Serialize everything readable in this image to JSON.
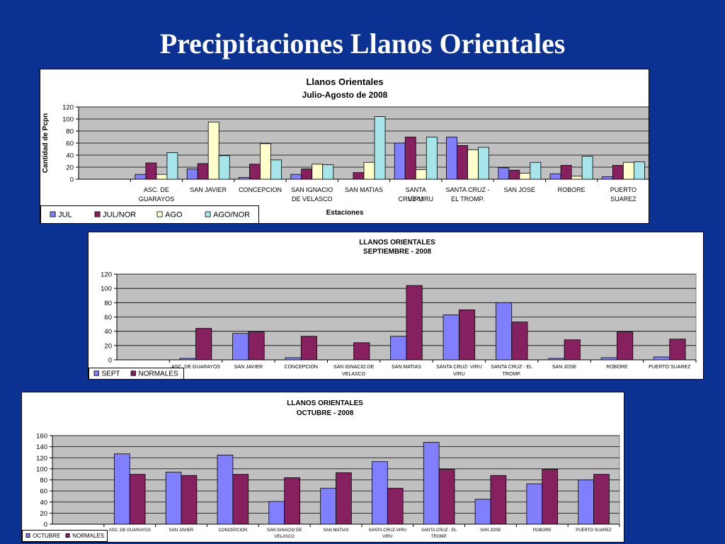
{
  "slide": {
    "title": "Precipitaciones Llanos Orientales"
  },
  "colors": {
    "background": "#0b3193",
    "plot_area": "#c0c0c0",
    "jul": "#8080ff",
    "jul_nor": "#86205e",
    "ago": "#ffffcc",
    "ago_nor": "#a6e6ea"
  },
  "chart_data": [
    {
      "type": "bar",
      "title": "Llanos Orientales",
      "subtitle": "Julio-Agosto de 2008",
      "xlabel": "Estaciones",
      "ylabel": "Cantidad de Pcpn",
      "ylim": [
        0,
        120
      ],
      "yticks": [
        0,
        20,
        40,
        60,
        80,
        100,
        120
      ],
      "grid": true,
      "legend_position": "bottom-left",
      "categories": [
        "",
        "ASC. DE GUARAYOS",
        "SAN JAVIER",
        "CONCEPCION",
        "SAN IGNACIO DE VELASCO",
        "SAN MATIAS",
        "SANTA CRUZ-VIRU VIRU",
        "SANTA CRUZ - EL TROMP.",
        "SAN JOSE",
        "ROBORE",
        "PUERTO SUAREZ"
      ],
      "series": [
        {
          "name": "JUL",
          "color": "#8080ff",
          "values": [
            null,
            8,
            17,
            3,
            8,
            0,
            60,
            70,
            19,
            9,
            4
          ]
        },
        {
          "name": "JUL/NOR",
          "color": "#86205e",
          "values": [
            null,
            27,
            26,
            25,
            17,
            11,
            70,
            56,
            15,
            23,
            23
          ]
        },
        {
          "name": "AGO",
          "color": "#ffffcc",
          "values": [
            null,
            8,
            95,
            59,
            25,
            28,
            16,
            49,
            10,
            5,
            28
          ]
        },
        {
          "name": "AGO/NOR",
          "color": "#a6e6ea",
          "values": [
            null,
            44,
            39,
            32,
            24,
            104,
            70,
            53,
            28,
            38,
            29
          ]
        }
      ]
    },
    {
      "type": "bar",
      "title": "LLANOS ORIENTALES",
      "subtitle": "SEPTIEMBRE - 2008",
      "ylim": [
        0,
        120
      ],
      "yticks": [
        0,
        20,
        40,
        60,
        80,
        100,
        120
      ],
      "grid": true,
      "legend_position": "bottom-left",
      "categories": [
        "",
        "ASC. DE GUARAYOS",
        "SAN JAVIER",
        "CONCEPCION",
        "SAN IGNACIO DE VELASCO",
        "SAN MATIAS",
        "SANTA CRUZ- VIRU VIRU",
        "SANTA CRUZ - EL TROMP.",
        "SAN JOSE",
        "ROBORE",
        "PUERTO SUAREZ"
      ],
      "series": [
        {
          "name": "SEPT",
          "color": "#8080ff",
          "values": [
            null,
            2,
            37,
            3,
            0,
            33,
            63,
            80,
            2,
            3,
            4
          ]
        },
        {
          "name": "NORMALES",
          "color": "#86205e",
          "values": [
            null,
            44,
            39,
            33,
            24,
            104,
            70,
            53,
            28,
            39,
            29
          ]
        }
      ]
    },
    {
      "type": "bar",
      "title": "LLANOS ORIENTALES",
      "subtitle": "OCTUBRE - 2008",
      "ylim": [
        0,
        160
      ],
      "yticks": [
        0,
        20,
        40,
        60,
        80,
        100,
        120,
        140,
        160
      ],
      "grid": true,
      "legend_position": "bottom-left",
      "categories": [
        "",
        "ASC. DE GUARAYOS",
        "SAN JAVIER",
        "CONCEPCION",
        "SAN IGNACIO DE VELASCO",
        "SAN MATIAS",
        "SANTA CRUZ-VIRU VIRU",
        "SANTA CRUZ - EL TROMP.",
        "SAN JOSE",
        "ROBORE",
        "PUERTO SUAREZ"
      ],
      "series": [
        {
          "name": "OCTUBRE",
          "color": "#8080ff",
          "values": [
            null,
            127,
            94,
            125,
            41,
            65,
            113,
            148,
            45,
            73,
            80
          ]
        },
        {
          "name": "NORMALES",
          "color": "#86205e",
          "values": [
            null,
            90,
            88,
            90,
            84,
            93,
            65,
            99,
            88,
            99,
            90
          ]
        }
      ]
    }
  ]
}
